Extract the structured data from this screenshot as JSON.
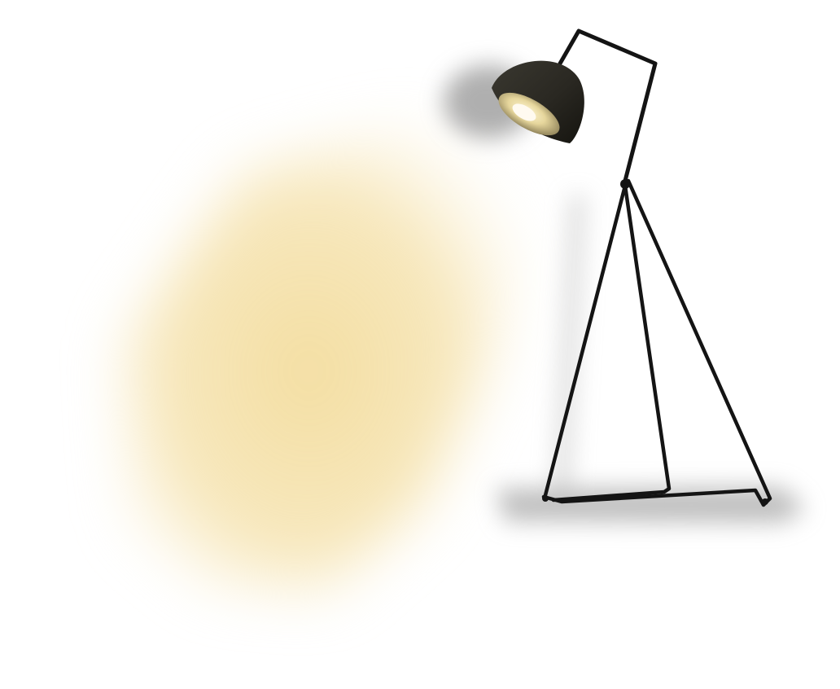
{
  "image": {
    "subject": "floor-lamp",
    "colors": {
      "background": "#ffffff",
      "light": "#f5dfa0",
      "frame": "#141414",
      "shade_outer": "#2c2a24",
      "shade_inner": "#e8dcaa",
      "shadow": "#7a7a7a"
    }
  }
}
